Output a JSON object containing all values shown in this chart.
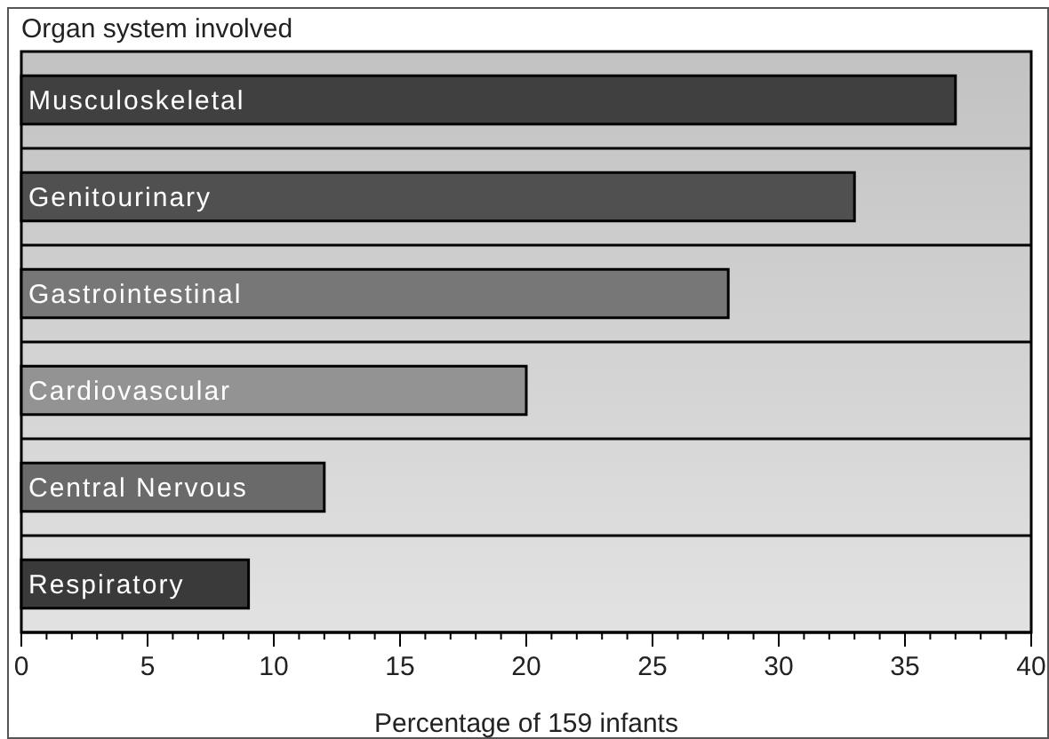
{
  "chart_data": {
    "type": "bar",
    "orientation": "horizontal",
    "ylabel": "Organ system involved",
    "xlabel": "Percentage of 159 infants",
    "categories": [
      "Musculoskeletal",
      "Genitourinary",
      "Gastrointestinal",
      "Cardiovascular",
      "Central Nervous",
      "Respiratory"
    ],
    "values": [
      37,
      33,
      28,
      20,
      12,
      9
    ],
    "colors": [
      "#404040",
      "#505050",
      "#777777",
      "#939393",
      "#6a6a6a",
      "#3a3a3a"
    ],
    "xlim": [
      0,
      40
    ],
    "xticks": [
      0,
      5,
      10,
      15,
      20,
      25,
      30,
      35,
      40
    ],
    "grid": "y"
  }
}
